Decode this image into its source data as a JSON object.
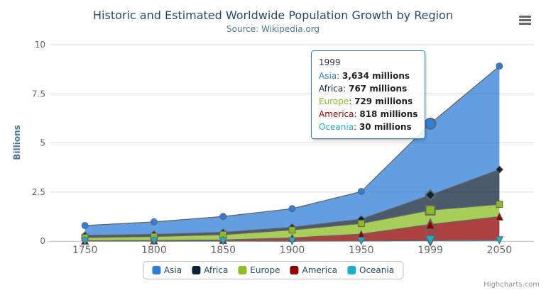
{
  "credits": {
    "label": "Highcharts.com"
  },
  "export_menu": {
    "icon": "hamburger-icon"
  },
  "chart_data": {
    "type": "area",
    "stacking": "normal",
    "title": "Historic and Estimated Worldwide Population Growth by Region",
    "subtitle": "Source: Wikipedia.org",
    "xlabel": "",
    "ylabel": "Billions",
    "values_unit": "millions",
    "ylim": [
      0,
      10
    ],
    "yticks": [
      0,
      2.5,
      5,
      7.5,
      10
    ],
    "ytick_labels": [
      "0",
      "2.5",
      "5",
      "7.5",
      "10"
    ],
    "grid": true,
    "legend_position": "bottom-center",
    "categories": [
      "1750",
      "1800",
      "1850",
      "1900",
      "1950",
      "1999",
      "2050"
    ],
    "series": [
      {
        "name": "Asia",
        "color": "#2f7ed8",
        "marker": "circle",
        "values": [
          502,
          635,
          809,
          947,
          1402,
          3634,
          5268
        ]
      },
      {
        "name": "Africa",
        "color": "#0d233a",
        "marker": "diamond",
        "values": [
          106,
          107,
          111,
          133,
          221,
          767,
          1766
        ]
      },
      {
        "name": "Europe",
        "color": "#8bbc21",
        "marker": "square",
        "values": [
          163,
          203,
          276,
          408,
          547,
          729,
          628
        ]
      },
      {
        "name": "America",
        "color": "#910000",
        "marker": "triangle",
        "values": [
          18,
          31,
          54,
          156,
          339,
          818,
          1201
        ]
      },
      {
        "name": "Oceania",
        "color": "#1aadce",
        "marker": "triangle-down",
        "values": [
          2,
          2,
          2,
          6,
          13,
          30,
          46
        ]
      }
    ]
  },
  "tooltip": {
    "category": "1999",
    "border_color": "#2f7ed8",
    "rows": [
      {
        "series": "Asia",
        "value": "3,634 millions"
      },
      {
        "series": "Africa",
        "value": "767 millions"
      },
      {
        "series": "Europe",
        "value": "729 millions"
      },
      {
        "series": "America",
        "value": "818 millions"
      },
      {
        "series": "Oceania",
        "value": "30 millions"
      }
    ]
  }
}
